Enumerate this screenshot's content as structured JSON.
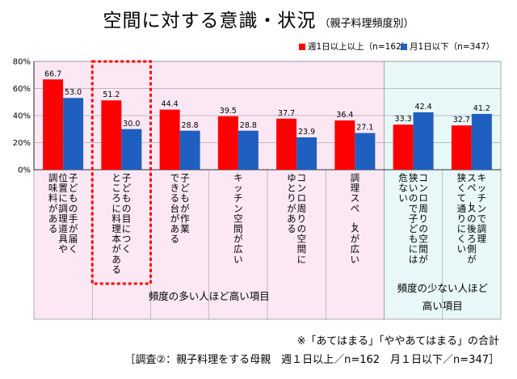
{
  "chart_data": {
    "type": "bar",
    "title": "空間に対する意識・状況",
    "subtitle": "（親子料理頻度別）",
    "ylim": [
      0,
      80
    ],
    "yticks": [
      0,
      20,
      40,
      60,
      80
    ],
    "ytick_labels": [
      "0%",
      "20%",
      "40%",
      "60%",
      "80%"
    ],
    "grid": true,
    "legend_position": "top-right",
    "categories": [
      [
        "子どもの手が届く",
        "位置に調理道具や",
        "調味料がある"
      ],
      [
        "子どもの目につく",
        "ところに料理本がある"
      ],
      [
        "子どもが作業",
        "できる台がある"
      ],
      [
        "キッチン空間が広い"
      ],
      [
        "コンロ周りの空間に",
        "ゆとりがある"
      ],
      [
        "調理スペースが広い"
      ],
      [
        "コンロ周りの空間が",
        "狭いので子どもには",
        "危ない"
      ],
      [
        "キッチンで調理",
        "スペースの後ろ側が",
        "狭くて通りにくい"
      ]
    ],
    "series": [
      {
        "name": "週1日以上以上（n=162）",
        "color": "#ff0000",
        "values": [
          66.7,
          51.2,
          44.4,
          39.5,
          37.7,
          36.4,
          33.3,
          32.7
        ]
      },
      {
        "name": "月1日以下（n=347）",
        "color": "#1f5fbf",
        "values": [
          53.0,
          30.0,
          28.8,
          28.8,
          23.9,
          27.1,
          42.4,
          41.2
        ]
      }
    ],
    "value_labels": [
      [
        "66.7",
        "51.2",
        "44.4",
        "39.5",
        "37.7",
        "36.4",
        "33.3",
        "32.7"
      ],
      [
        "53.0",
        "30.0",
        "28.8",
        "28.8",
        "23.9",
        "27.1",
        "42.4",
        "41.2"
      ]
    ],
    "groups": [
      {
        "label": "頻度の多い人ほど高い項目",
        "count": 6,
        "color": "#fce8f4"
      },
      {
        "label": "頻度の少ない人ほど 高い項目",
        "count": 2,
        "color": "#e8f8f8"
      }
    ],
    "highlight_category": 1,
    "highlight_color": "#ff0000"
  },
  "notes": {
    "line1": "※「あてはまる」「ややあてはまる」の合計",
    "line2": "［調査②：親子料理をする母親　週１日以上／n=162　月１日以下／n=347］"
  }
}
